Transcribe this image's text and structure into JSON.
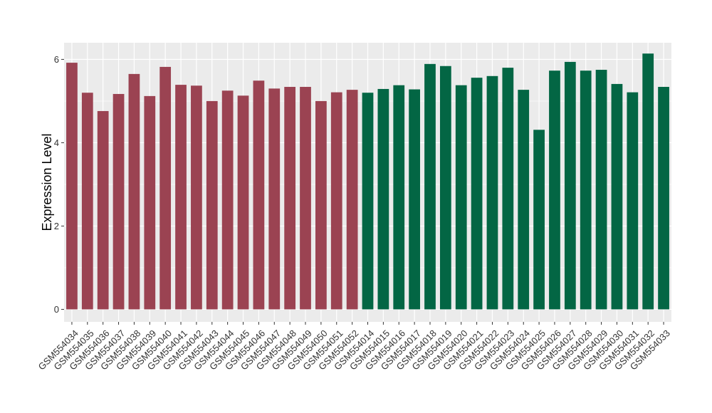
{
  "chart_data": {
    "type": "bar",
    "title": "",
    "xlabel": "",
    "ylabel": "Expression Level",
    "ylim": [
      -0.3,
      6.4
    ],
    "yticks": [
      0,
      2,
      4,
      6
    ],
    "grid": true,
    "legend": "none",
    "series": [
      {
        "color": "#9b4352",
        "categories": [
          "GSM554034",
          "GSM554035",
          "GSM554036",
          "GSM554037",
          "GSM554038",
          "GSM554039",
          "GSM554040",
          "GSM554041",
          "GSM554042",
          "GSM554043",
          "GSM554044",
          "GSM554045",
          "GSM554046",
          "GSM554047",
          "GSM554048",
          "GSM554049",
          "GSM554050",
          "GSM554051",
          "GSM554052"
        ],
        "values": [
          5.92,
          5.2,
          4.76,
          5.17,
          5.65,
          5.12,
          5.82,
          5.39,
          5.37,
          5.0,
          5.25,
          5.13,
          5.49,
          5.3,
          5.34,
          5.34,
          5.0,
          5.21,
          5.27
        ]
      },
      {
        "color": "#036644",
        "categories": [
          "GSM554014",
          "GSM554015",
          "GSM554016",
          "GSM554017",
          "GSM554018",
          "GSM554019",
          "GSM554020",
          "GSM554021",
          "GSM554022",
          "GSM554023",
          "GSM554024",
          "GSM554025",
          "GSM554026",
          "GSM554027",
          "GSM554028",
          "GSM554029",
          "GSM554030",
          "GSM554031",
          "GSM554032",
          "GSM554033"
        ],
        "values": [
          5.2,
          5.29,
          5.38,
          5.28,
          5.89,
          5.84,
          5.38,
          5.56,
          5.6,
          5.8,
          5.27,
          4.31,
          5.73,
          5.94,
          5.73,
          5.75,
          5.41,
          5.21,
          6.14,
          5.34
        ]
      }
    ]
  }
}
